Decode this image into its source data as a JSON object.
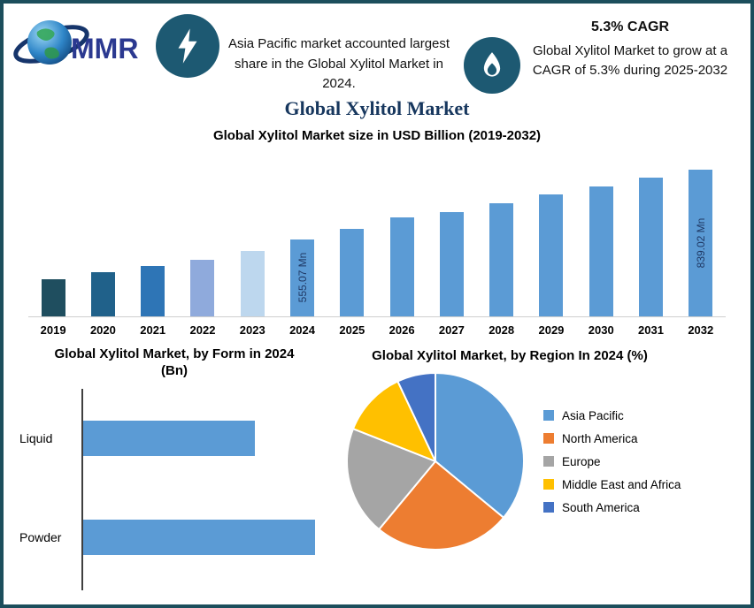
{
  "page": {
    "border_color": "#1C4E5C",
    "background": "#FFFFFF"
  },
  "header": {
    "logo": {
      "text": "MMR"
    },
    "highlight_left": {
      "icon": "lightning-icon",
      "text": "Asia Pacific market accounted largest share in the Global Xylitol Market in 2024."
    },
    "highlight_right": {
      "icon": "flame-icon",
      "title": "5.3% CAGR",
      "text": "Global Xylitol Market to grow at a CAGR of 5.3% during 2025-2032"
    },
    "title": "Global Xylitol Market"
  },
  "chart_data": [
    {
      "type": "bar",
      "title": "Global Xylitol Market size in USD Billion (2019-2032)",
      "categories": [
        "2019",
        "2020",
        "2021",
        "2022",
        "2023",
        "2024",
        "2025",
        "2026",
        "2027",
        "2028",
        "2029",
        "2030",
        "2031",
        "2032"
      ],
      "values": [
        42,
        50,
        57,
        64,
        74,
        87,
        99,
        112,
        118,
        128,
        138,
        147,
        157,
        166
      ],
      "bar_value_labels": [
        "",
        "",
        "",
        "",
        "",
        "555.07 Mn",
        "",
        "",
        "",
        "",
        "",
        "",
        "",
        "839.02 Mn"
      ],
      "bar_colors": [
        "#1F4E5F",
        "#20618A",
        "#2E75B6",
        "#8FAADC",
        "#BDD7EE",
        "#5B9BD5",
        "#5B9BD5",
        "#5B9BD5",
        "#5B9BD5",
        "#5B9BD5",
        "#5B9BD5",
        "#5B9BD5",
        "#5B9BD5",
        "#5B9BD5"
      ],
      "label_color": "#1F3864",
      "grid": false,
      "legend": false
    },
    {
      "type": "bar",
      "orientation": "horizontal",
      "title": "Global Xylitol Market, by Form in 2024 (Bn)",
      "categories": [
        "Liquid",
        "Powder"
      ],
      "values": [
        74,
        100
      ],
      "bar_color": "#5B9BD5",
      "grid": false,
      "legend": false
    },
    {
      "type": "pie",
      "title": "Global Xylitol Market, by Region In 2024 (%)",
      "labels": [
        "Asia Pacific",
        "North America",
        "Europe",
        "Middle East and Africa",
        "South America"
      ],
      "values": [
        36,
        25,
        20,
        12,
        7
      ],
      "colors": [
        "#5B9BD5",
        "#ED7D31",
        "#A5A5A5",
        "#FFC000",
        "#4472C4"
      ],
      "start_angle_deg": -90,
      "legend_position": "right"
    }
  ]
}
